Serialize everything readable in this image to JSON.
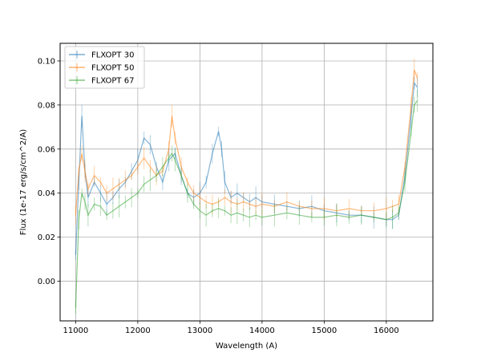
{
  "chart_data": {
    "type": "line",
    "xlabel": "Wavelength (A)",
    "ylabel": "Flux (1e-17 erg/s/cm^2/A)",
    "xlim": [
      10750,
      16750
    ],
    "ylim": [
      -0.018,
      0.108
    ],
    "xticks": [
      11000,
      12000,
      13000,
      14000,
      15000,
      16000
    ],
    "xtick_labels": [
      "11000",
      "12000",
      "13000",
      "14000",
      "15000",
      "16000"
    ],
    "yticks": [
      0.0,
      0.02,
      0.04,
      0.06,
      0.08,
      0.1
    ],
    "ytick_labels": [
      "0.00",
      "0.02",
      "0.04",
      "0.06",
      "0.08",
      "0.10"
    ],
    "grid": true,
    "legend_position": "upper-left",
    "errorbars": true,
    "series": [
      {
        "name": "FLXOPT 30",
        "color": "#1f77b4",
        "points": [
          [
            11000,
            0.012
          ],
          [
            11050,
            0.045
          ],
          [
            11100,
            0.075
          ],
          [
            11150,
            0.05
          ],
          [
            11200,
            0.038
          ],
          [
            11300,
            0.045
          ],
          [
            11400,
            0.04
          ],
          [
            11500,
            0.035
          ],
          [
            11600,
            0.038
          ],
          [
            11700,
            0.042
          ],
          [
            11800,
            0.045
          ],
          [
            11900,
            0.05
          ],
          [
            12000,
            0.055
          ],
          [
            12100,
            0.065
          ],
          [
            12200,
            0.062
          ],
          [
            12300,
            0.052
          ],
          [
            12400,
            0.045
          ],
          [
            12500,
            0.055
          ],
          [
            12600,
            0.058
          ],
          [
            12700,
            0.048
          ],
          [
            12800,
            0.04
          ],
          [
            12900,
            0.038
          ],
          [
            13000,
            0.04
          ],
          [
            13100,
            0.045
          ],
          [
            13200,
            0.058
          ],
          [
            13300,
            0.068
          ],
          [
            13350,
            0.06
          ],
          [
            13400,
            0.045
          ],
          [
            13500,
            0.038
          ],
          [
            13600,
            0.04
          ],
          [
            13700,
            0.038
          ],
          [
            13800,
            0.036
          ],
          [
            13900,
            0.038
          ],
          [
            14000,
            0.036
          ],
          [
            14200,
            0.035
          ],
          [
            14400,
            0.034
          ],
          [
            14600,
            0.033
          ],
          [
            14800,
            0.034
          ],
          [
            15000,
            0.032
          ],
          [
            15200,
            0.031
          ],
          [
            15400,
            0.03
          ],
          [
            15600,
            0.03
          ],
          [
            15800,
            0.029
          ],
          [
            16000,
            0.028
          ],
          [
            16100,
            0.028
          ],
          [
            16200,
            0.03
          ],
          [
            16300,
            0.048
          ],
          [
            16400,
            0.075
          ],
          [
            16450,
            0.09
          ],
          [
            16500,
            0.088
          ]
        ]
      },
      {
        "name": "FLXOPT 50",
        "color": "#ff7f0e",
        "points": [
          [
            11000,
            0.03
          ],
          [
            11050,
            0.05
          ],
          [
            11100,
            0.058
          ],
          [
            11150,
            0.05
          ],
          [
            11200,
            0.042
          ],
          [
            11300,
            0.048
          ],
          [
            11400,
            0.045
          ],
          [
            11500,
            0.04
          ],
          [
            11600,
            0.042
          ],
          [
            11700,
            0.044
          ],
          [
            11800,
            0.046
          ],
          [
            11900,
            0.048
          ],
          [
            12000,
            0.052
          ],
          [
            12100,
            0.056
          ],
          [
            12200,
            0.052
          ],
          [
            12300,
            0.048
          ],
          [
            12400,
            0.05
          ],
          [
            12500,
            0.06
          ],
          [
            12550,
            0.075
          ],
          [
            12600,
            0.065
          ],
          [
            12700,
            0.052
          ],
          [
            12800,
            0.045
          ],
          [
            12900,
            0.04
          ],
          [
            13000,
            0.038
          ],
          [
            13100,
            0.036
          ],
          [
            13200,
            0.035
          ],
          [
            13300,
            0.036
          ],
          [
            13400,
            0.038
          ],
          [
            13500,
            0.036
          ],
          [
            13600,
            0.035
          ],
          [
            13700,
            0.036
          ],
          [
            13800,
            0.035
          ],
          [
            13900,
            0.034
          ],
          [
            14000,
            0.035
          ],
          [
            14200,
            0.034
          ],
          [
            14400,
            0.036
          ],
          [
            14600,
            0.034
          ],
          [
            14800,
            0.033
          ],
          [
            15000,
            0.033
          ],
          [
            15200,
            0.032
          ],
          [
            15400,
            0.033
          ],
          [
            15600,
            0.032
          ],
          [
            15800,
            0.032
          ],
          [
            16000,
            0.033
          ],
          [
            16100,
            0.034
          ],
          [
            16200,
            0.035
          ],
          [
            16300,
            0.052
          ],
          [
            16400,
            0.08
          ],
          [
            16450,
            0.096
          ],
          [
            16500,
            0.092
          ]
        ]
      },
      {
        "name": "FLXOPT 67",
        "color": "#2ca02c",
        "points": [
          [
            11000,
            -0.012
          ],
          [
            11050,
            0.028
          ],
          [
            11100,
            0.04
          ],
          [
            11150,
            0.036
          ],
          [
            11200,
            0.03
          ],
          [
            11300,
            0.035
          ],
          [
            11400,
            0.034
          ],
          [
            11500,
            0.03
          ],
          [
            11600,
            0.032
          ],
          [
            11700,
            0.034
          ],
          [
            11800,
            0.036
          ],
          [
            11900,
            0.038
          ],
          [
            12000,
            0.04
          ],
          [
            12100,
            0.044
          ],
          [
            12200,
            0.046
          ],
          [
            12300,
            0.048
          ],
          [
            12400,
            0.052
          ],
          [
            12500,
            0.056
          ],
          [
            12550,
            0.058
          ],
          [
            12600,
            0.055
          ],
          [
            12700,
            0.048
          ],
          [
            12800,
            0.04
          ],
          [
            12900,
            0.035
          ],
          [
            13000,
            0.032
          ],
          [
            13100,
            0.03
          ],
          [
            13200,
            0.032
          ],
          [
            13300,
            0.033
          ],
          [
            13400,
            0.032
          ],
          [
            13500,
            0.03
          ],
          [
            13600,
            0.031
          ],
          [
            13700,
            0.03
          ],
          [
            13800,
            0.029
          ],
          [
            13900,
            0.03
          ],
          [
            14000,
            0.029
          ],
          [
            14200,
            0.03
          ],
          [
            14400,
            0.031
          ],
          [
            14600,
            0.03
          ],
          [
            14800,
            0.029
          ],
          [
            15000,
            0.029
          ],
          [
            15200,
            0.03
          ],
          [
            15400,
            0.029
          ],
          [
            15600,
            0.03
          ],
          [
            15800,
            0.029
          ],
          [
            16000,
            0.028
          ],
          [
            16100,
            0.029
          ],
          [
            16200,
            0.031
          ],
          [
            16300,
            0.045
          ],
          [
            16400,
            0.068
          ],
          [
            16450,
            0.08
          ],
          [
            16500,
            0.082
          ]
        ]
      }
    ]
  }
}
